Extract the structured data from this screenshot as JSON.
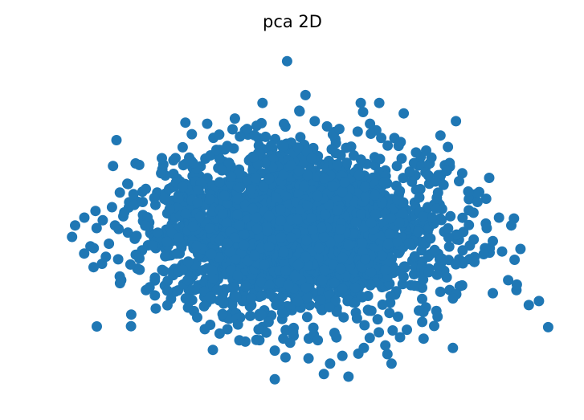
{
  "chart_data": {
    "type": "scatter",
    "title": "pca 2D",
    "xlabel": "",
    "ylabel": "",
    "axes_visible": false,
    "grid": false,
    "xlim": [
      -4.3,
      4.2
    ],
    "ylim": [
      -3.2,
      3.5
    ],
    "marker_color": "#1f77b4",
    "cloud": {
      "n": 2600,
      "center": [
        0.0,
        0.0
      ],
      "std": [
        1.15,
        0.75
      ],
      "seed": 7
    },
    "series": [
      {
        "points": [
          [
            -3.6,
            0.1
          ],
          [
            -3.65,
            -0.12
          ],
          [
            -3.45,
            0.25
          ],
          [
            -3.35,
            -0.3
          ],
          [
            -3.25,
            0.05
          ],
          [
            -3.15,
            0.2
          ],
          [
            -3.05,
            -0.25
          ],
          [
            -2.95,
            0.1
          ],
          [
            -3.1,
            -0.5
          ],
          [
            -2.9,
            -0.55
          ],
          [
            -3.0,
            0.45
          ],
          [
            -2.8,
            0.35
          ],
          [
            -2.7,
            -0.65
          ],
          [
            -2.6,
            -0.1
          ],
          [
            -2.5,
            0.55
          ],
          [
            -2.55,
            -0.75
          ],
          [
            -2.45,
            0.8
          ],
          [
            -2.3,
            -0.9
          ],
          [
            -2.2,
            1.1
          ],
          [
            -2.1,
            -1.15
          ],
          [
            -2.0,
            1.35
          ],
          [
            -1.85,
            1.6
          ],
          [
            -1.8,
            -1.3
          ],
          [
            -1.7,
            1.85
          ],
          [
            -1.5,
            -1.45
          ],
          [
            -1.45,
            2.05
          ],
          [
            -1.3,
            1.55
          ],
          [
            -1.2,
            -1.6
          ],
          [
            -1.0,
            2.15
          ],
          [
            -0.95,
            -1.8
          ],
          [
            -0.8,
            1.95
          ],
          [
            -0.7,
            1.4
          ],
          [
            -0.6,
            -2.1
          ],
          [
            -0.5,
            1.8
          ],
          [
            -0.45,
            -1.75
          ],
          [
            -0.35,
            -2.3
          ],
          [
            -0.2,
            2.05
          ],
          [
            -0.15,
            3.25
          ],
          [
            -0.1,
            -2.15
          ],
          [
            0.05,
            2.3
          ],
          [
            0.15,
            2.6
          ],
          [
            0.2,
            -2.45
          ],
          [
            0.3,
            2.1
          ],
          [
            0.35,
            -2.1
          ],
          [
            0.5,
            2.0
          ],
          [
            0.55,
            -2.55
          ],
          [
            0.7,
            1.95
          ],
          [
            0.75,
            -2.4
          ],
          [
            0.85,
            -2.8
          ],
          [
            1.0,
            1.9
          ],
          [
            1.1,
            -2.25
          ],
          [
            1.2,
            2.05
          ],
          [
            1.35,
            2.45
          ],
          [
            1.45,
            -2.2
          ],
          [
            1.55,
            -2.55
          ],
          [
            1.7,
            1.7
          ],
          [
            1.8,
            -1.9
          ],
          [
            1.95,
            1.5
          ],
          [
            2.05,
            -1.75
          ],
          [
            2.2,
            1.4
          ],
          [
            2.3,
            -1.65
          ],
          [
            2.45,
            1.15
          ],
          [
            2.55,
            -1.3
          ],
          [
            2.65,
            0.95
          ],
          [
            2.7,
            -1.05
          ],
          [
            2.8,
            0.75
          ],
          [
            2.9,
            -0.6
          ],
          [
            2.95,
            0.55
          ],
          [
            3.05,
            -0.45
          ],
          [
            3.1,
            0.05
          ],
          [
            3.2,
            -0.2
          ],
          [
            3.3,
            0.25
          ],
          [
            3.35,
            -0.4
          ],
          [
            3.45,
            -0.95
          ],
          [
            3.5,
            0.1
          ],
          [
            3.65,
            -0.35
          ],
          [
            2.6,
            2.1
          ],
          [
            3.2,
            -1.2
          ],
          [
            3.95,
            -1.35
          ],
          [
            4.1,
            -1.85
          ],
          [
            2.55,
            -2.25
          ],
          [
            -2.75,
            0.9
          ],
          [
            -3.3,
            -0.7
          ],
          [
            -2.85,
            -0.95
          ],
          [
            -2.65,
            0.7
          ],
          [
            1.75,
            2.25
          ],
          [
            1.05,
            2.45
          ],
          [
            -0.55,
            2.45
          ],
          [
            -0.35,
            -2.85
          ],
          [
            0.45,
            -2.75
          ]
        ]
      }
    ]
  }
}
